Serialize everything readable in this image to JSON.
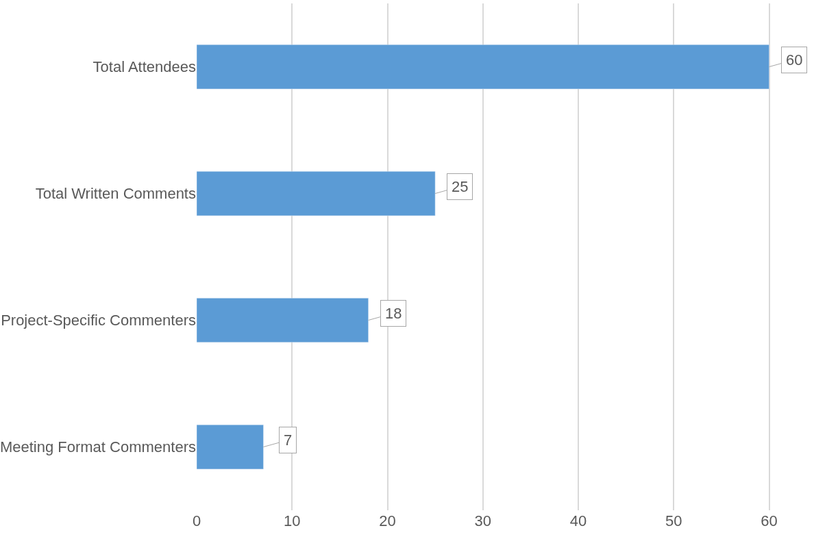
{
  "chart_data": {
    "type": "bar",
    "orientation": "horizontal",
    "categories": [
      "Total Attendees",
      "Total Written Comments",
      "Project-Specific Commenters",
      "Meeting Format Commenters"
    ],
    "values": [
      60,
      25,
      18,
      7
    ],
    "color": "#5b9bd5",
    "xlim": [
      0,
      64.7
    ],
    "xticks": [
      0,
      10,
      20,
      30,
      40,
      50,
      60
    ],
    "grid": "x",
    "data_labels": true
  }
}
